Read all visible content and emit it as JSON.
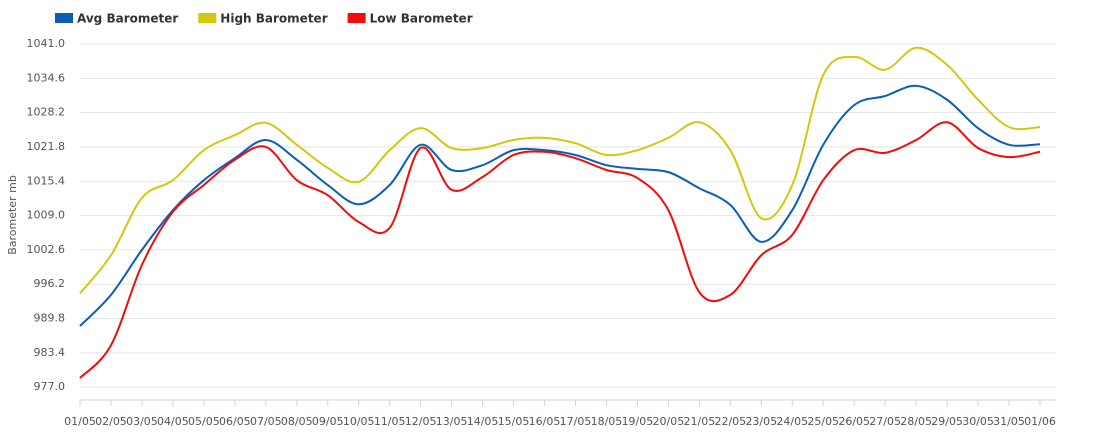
{
  "chart_data": {
    "type": "line",
    "y_label": "Barometer mb",
    "categories": [
      "01/05",
      "02/05",
      "03/05",
      "04/05",
      "05/05",
      "06/05",
      "07/05",
      "08/05",
      "09/05",
      "10/05",
      "11/05",
      "12/05",
      "13/05",
      "14/05",
      "15/05",
      "16/05",
      "17/05",
      "18/05",
      "19/05",
      "20/05",
      "21/05",
      "22/05",
      "23/05",
      "24/05",
      "25/05",
      "26/05",
      "27/05",
      "28/05",
      "29/05",
      "30/05",
      "31/05",
      "01/06"
    ],
    "series": [
      {
        "name": "Avg Barometer",
        "color": "#0b5db5",
        "values": [
          988.4,
          994.2,
          1002.6,
          1010.0,
          1015.6,
          1019.7,
          1023.1,
          1019.4,
          1014.7,
          1011.1,
          1014.7,
          1022.2,
          1017.5,
          1018.4,
          1021.2,
          1021.2,
          1020.3,
          1018.4,
          1017.7,
          1017.1,
          1014.1,
          1011.0,
          1004.1,
          1010.0,
          1022.2,
          1029.6,
          1031.3,
          1033.2,
          1030.6,
          1025.3,
          1022.2,
          1022.3
        ]
      },
      {
        "name": "High Barometer",
        "color": "#d4c80e",
        "values": [
          994.5,
          1001.6,
          1012.3,
          1015.6,
          1021.2,
          1024.0,
          1026.3,
          1022.2,
          1017.9,
          1015.3,
          1021.2,
          1025.3,
          1021.6,
          1021.6,
          1023.1,
          1023.5,
          1022.5,
          1020.3,
          1021.2,
          1023.5,
          1026.4,
          1021.2,
          1008.5,
          1014.7,
          1035.2,
          1038.6,
          1036.2,
          1040.3,
          1037.1,
          1030.6,
          1025.5,
          1025.5
        ]
      },
      {
        "name": "Low Barometer",
        "color": "#ee0c0c",
        "values": [
          978.7,
          984.8,
          999.8,
          1009.7,
          1014.7,
          1019.4,
          1021.8,
          1015.6,
          1012.8,
          1007.8,
          1006.7,
          1021.6,
          1013.8,
          1016.2,
          1020.3,
          1020.9,
          1019.7,
          1017.5,
          1016.0,
          1010.0,
          994.7,
          994.2,
          1001.6,
          1005.4,
          1015.6,
          1021.2,
          1020.7,
          1023.1,
          1026.4,
          1021.6,
          1019.9,
          1020.9
        ]
      }
    ],
    "ylim": [
      974.6,
      1041.0
    ],
    "yticks": [
      {
        "value": 977.0,
        "label": "977.0"
      },
      983.4,
      989.8,
      996.2,
      1002.6,
      {
        "value": 1009.0,
        "label": "1009.0"
      },
      1015.4,
      1021.8,
      1028.2,
      1034.6,
      {
        "value": 1041.0,
        "label": "1041.0"
      }
    ],
    "grid": true,
    "legend": "top-left"
  }
}
